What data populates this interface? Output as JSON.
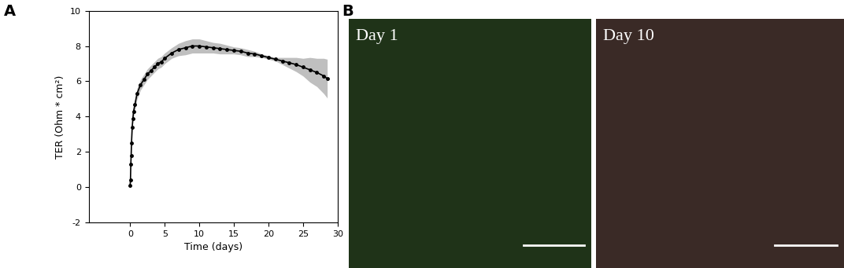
{
  "panel_labels": [
    "A",
    "B"
  ],
  "chart_data": {
    "type": "line",
    "x_label": "Time (days)",
    "y_label": "TER (Ohm * cm²)",
    "x": [
      0,
      0.05,
      0.1,
      0.15,
      0.2,
      0.3,
      0.4,
      0.5,
      0.7,
      1,
      1.5,
      2,
      2.5,
      3,
      3.5,
      4,
      4.5,
      5,
      6,
      7,
      8,
      9,
      10,
      11,
      12,
      13,
      14,
      15,
      16,
      17,
      18,
      19,
      20,
      21,
      22,
      23,
      24,
      25,
      26,
      27,
      28,
      28.5
    ],
    "values": [
      0.1,
      0.4,
      1.3,
      1.8,
      2.5,
      3.4,
      3.9,
      4.3,
      4.7,
      5.3,
      5.8,
      6.1,
      6.4,
      6.6,
      6.8,
      7.0,
      7.1,
      7.3,
      7.6,
      7.8,
      7.9,
      8.0,
      8.0,
      7.95,
      7.9,
      7.85,
      7.8,
      7.75,
      7.7,
      7.6,
      7.55,
      7.45,
      7.35,
      7.25,
      7.15,
      7.05,
      6.95,
      6.8,
      6.65,
      6.5,
      6.3,
      6.15
    ],
    "errors": [
      0.05,
      0.05,
      0.1,
      0.1,
      0.15,
      0.2,
      0.25,
      0.3,
      0.3,
      0.3,
      0.3,
      0.3,
      0.3,
      0.3,
      0.3,
      0.3,
      0.3,
      0.3,
      0.3,
      0.35,
      0.4,
      0.4,
      0.4,
      0.35,
      0.3,
      0.3,
      0.25,
      0.2,
      0.2,
      0.2,
      0.15,
      0.1,
      0.1,
      0.1,
      0.2,
      0.3,
      0.4,
      0.5,
      0.7,
      0.8,
      1.0,
      1.1
    ],
    "color": "#000000",
    "marker": "o",
    "xlim": [
      -6,
      30
    ],
    "xticks": [
      0,
      5,
      10,
      15,
      20,
      25,
      30
    ],
    "ylim": [
      -2,
      10
    ],
    "yticks": [
      -2,
      0,
      2,
      4,
      6,
      8,
      10
    ]
  },
  "images": [
    {
      "label": "Day 1"
    },
    {
      "label": "Day 10"
    }
  ]
}
